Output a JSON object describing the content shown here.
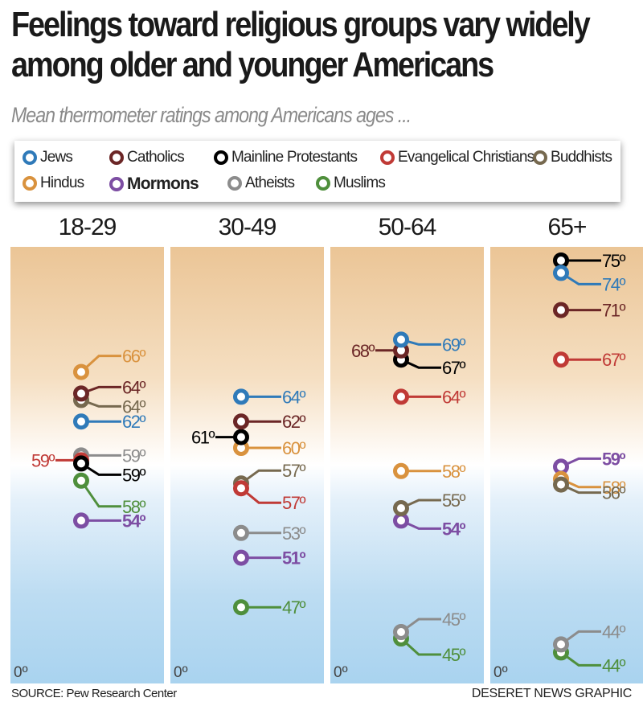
{
  "title_line1": "Feelings toward religious groups vary widely",
  "title_line2": "among older and younger Americans",
  "subtitle": "Mean thermometer ratings among Americans ages ...",
  "source": "SOURCE: Pew Research Center",
  "credit": "DESERET NEWS GRAPHIC",
  "zero_label": "0º",
  "chart_data": {
    "type": "scatter",
    "title": "Feelings toward religious groups vary widely among older and younger Americans",
    "subtitle": "Mean thermometer ratings among Americans ages ...",
    "unit": "º",
    "ylim": [
      0,
      100
    ],
    "legend_position": "top",
    "groups": [
      {
        "name": "Jews",
        "color": "#2f7ab9",
        "bold": false
      },
      {
        "name": "Catholics",
        "color": "#6b2626",
        "bold": false
      },
      {
        "name": "Mainline Protestants",
        "color": "#000000",
        "bold": false
      },
      {
        "name": "Evangelical Christians",
        "color": "#c03a36",
        "bold": false
      },
      {
        "name": "Buddhists",
        "color": "#76694f",
        "bold": false
      },
      {
        "name": "Hindus",
        "color": "#d9923e",
        "bold": false
      },
      {
        "name": "Mormons",
        "color": "#7d4ea3",
        "bold": true
      },
      {
        "name": "Atheists",
        "color": "#8c8c8c",
        "bold": false
      },
      {
        "name": "Muslims",
        "color": "#4f8f3c",
        "bold": false
      }
    ],
    "panels": [
      {
        "age": "18-29",
        "values": {
          "Jews": 62,
          "Catholics": 64,
          "Mainline Protestants": 59,
          "Evangelical Christians": 59,
          "Buddhists": 64,
          "Hindus": 66,
          "Mormons": 54,
          "Atheists": 59,
          "Muslims": 58
        }
      },
      {
        "age": "30-49",
        "values": {
          "Jews": 64,
          "Catholics": 62,
          "Mainline Protestants": 61,
          "Evangelical Christians": 57,
          "Buddhists": 57,
          "Hindus": 60,
          "Mormons": 51,
          "Atheists": 53,
          "Muslims": 47
        }
      },
      {
        "age": "50-64",
        "values": {
          "Jews": 69,
          "Catholics": 68,
          "Mainline Protestants": 67,
          "Evangelical Christians": 64,
          "Buddhists": 55,
          "Hindus": 58,
          "Mormons": 54,
          "Atheists": 45,
          "Muslims": 45
        }
      },
      {
        "age": "65+",
        "values": {
          "Jews": 74,
          "Catholics": 71,
          "Mainline Protestants": 75,
          "Evangelical Christians": 67,
          "Buddhists": 56,
          "Hindus": 58,
          "Mormons": 59,
          "Atheists": 44,
          "Muslims": 44
        }
      }
    ]
  }
}
